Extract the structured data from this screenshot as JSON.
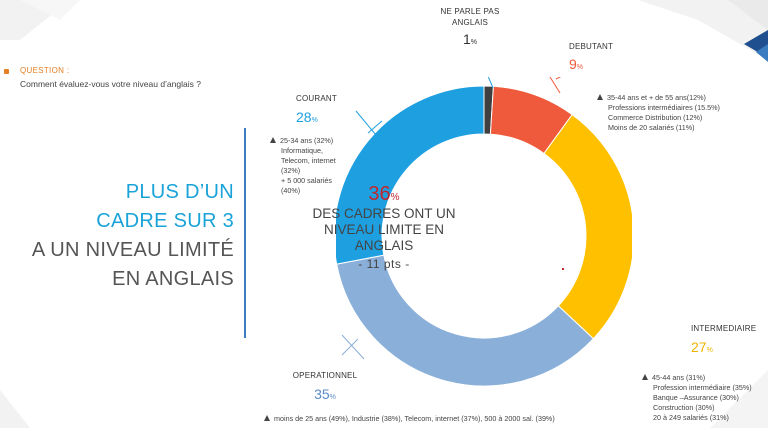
{
  "question": {
    "label": "QUESTION :",
    "text": "Comment évaluez-vous votre niveau d’anglais ?"
  },
  "headline": {
    "line1": "PLUS D’UN",
    "line2": "CADRE SUR 3",
    "line3": "A UN NIVEAU LIMITÉ",
    "line4": "EN ANGLAIS"
  },
  "center": {
    "value": "36",
    "unit": "%",
    "line1": "DES CADRES ONT UN",
    "line2": "NIVEAU LIMITE EN",
    "line3": "ANGLAIS",
    "delta": "- 11 pts -"
  },
  "chart_data": {
    "type": "pie",
    "donut": true,
    "start": "top",
    "direction": "clockwise",
    "series": [
      {
        "name": "NE PARLE PAS ANGLAIS",
        "value": 1,
        "color": "#3f3f3f"
      },
      {
        "name": "DEBUTANT",
        "value": 9,
        "color": "#f05a3c"
      },
      {
        "name": "INTERMEDIAIRE",
        "value": 27,
        "color": "#ffc000"
      },
      {
        "name": "OPERATIONNEL",
        "value": 35,
        "color": "#8aafd9"
      },
      {
        "name": "COURANT",
        "value": 28,
        "color": "#1e9fe0"
      }
    ]
  },
  "labels": {
    "ne_parle": {
      "name1": "NE PARLE PAS",
      "name2": "ANGLAIS",
      "value": "1",
      "unit": "%"
    },
    "debutant": {
      "name": "DEBUTANT",
      "value": "9",
      "unit": "%",
      "details": [
        "35-44 ans et + de 55 ans(12%)",
        "Professions intermédiaires (15.5%)",
        "Commerce Distribution (12%)",
        "Moins de 20 salariés (11%)"
      ]
    },
    "courant": {
      "name": "COURANT",
      "value": "28",
      "unit": "%",
      "details": [
        "25-34 ans (32%)",
        "Informatique,",
        "Telecom, internet",
        "(32%)",
        "+ 5 000 salariés",
        "(40%)"
      ]
    },
    "intermediaire": {
      "name": "INTERMEDIAIRE",
      "value": "27",
      "unit": "%",
      "details": [
        "45-44 ans (31%)",
        "Profession intermédiaire (35%)",
        "Banque –Assurance (30%)",
        "Construction (30%)",
        "20 à 249 salariés (31%)"
      ]
    },
    "operationnel": {
      "name": "OPERATIONNEL",
      "value": "35",
      "unit": "%",
      "details": [
        "moins de 25 ans (49%), Industrie (38%), Telecom, internet (37%), 500 à 2000 sal. (39%)"
      ]
    }
  },
  "colors": {
    "accent_orange": "#e67e22",
    "headline_blue": "#1aa3d9",
    "divider_blue": "#3a7cc0",
    "center_red": "#c0282e"
  }
}
